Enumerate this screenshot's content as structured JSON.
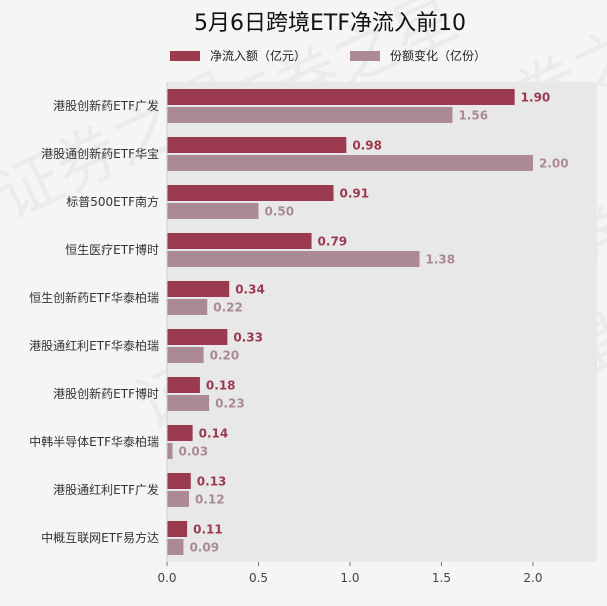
{
  "chart_data": {
    "type": "bar",
    "orientation": "horizontal",
    "title": "5月6日跨境ETF净流入前10",
    "legend_position": "top",
    "categories": [
      "港股创新药ETF广发",
      "港股通创新药ETF华宝",
      "标普500ETF南方",
      "恒生医疗ETF博时",
      "恒生创新药ETF华泰柏瑞",
      "港股通红利ETF华泰柏瑞",
      "港股创新药ETF博时",
      "中韩半导体ETF华泰柏瑞",
      "港股通红利ETF广发",
      "中概互联网ETF易方达"
    ],
    "series": [
      {
        "name": "净流入额（亿元）",
        "color": "#9b3a4e",
        "values": [
          1.9,
          0.98,
          0.91,
          0.79,
          0.34,
          0.33,
          0.18,
          0.14,
          0.13,
          0.11
        ],
        "labels": [
          "1.90",
          "0.98",
          "0.91",
          "0.79",
          "0.34",
          "0.33",
          "0.18",
          "0.14",
          "0.13",
          "0.11"
        ]
      },
      {
        "name": "份额变化（亿份）",
        "color": "#ab8a95",
        "values": [
          1.56,
          2.0,
          0.5,
          1.38,
          0.22,
          0.2,
          0.23,
          0.03,
          0.12,
          0.09
        ],
        "labels": [
          "1.56",
          "2.00",
          "0.50",
          "1.38",
          "0.22",
          "0.20",
          "0.23",
          "0.03",
          "0.12",
          "0.09"
        ]
      }
    ],
    "xlim": [
      0,
      2.35
    ],
    "xticks": [
      0,
      0.5,
      1,
      1.5,
      2
    ],
    "xtick_labels": [
      "0.0",
      "0.5",
      "1.0",
      "1.5",
      "2.0"
    ],
    "grid": false
  },
  "colors": {
    "plot_background": "#e8e8e8",
    "page_background": "#f5f5f5"
  },
  "watermark": "证券之星"
}
